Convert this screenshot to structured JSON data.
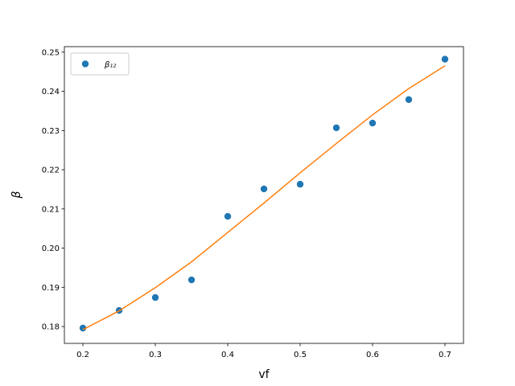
{
  "chart_data": {
    "type": "scatter",
    "xlabel": "vf",
    "ylabel": "β",
    "xlim": [
      0.1744,
      0.7256
    ],
    "ylim": [
      0.1757,
      0.2514
    ],
    "xticks": [
      0.2,
      0.3,
      0.4,
      0.5,
      0.6,
      0.7
    ],
    "yticks": [
      0.18,
      0.19,
      {
        "value": 0.2,
        "label": "0.20"
      },
      0.21,
      0.22,
      0.23,
      0.24,
      0.25
    ],
    "legend": "upper left",
    "series": [
      {
        "name": "β₁₂",
        "mode": "markers",
        "color": "#1f77b4",
        "x": [
          0.2,
          0.25,
          0.3,
          0.35,
          0.4,
          0.45,
          0.5,
          0.55,
          0.6,
          0.65,
          0.7
        ],
        "values": [
          0.1796,
          0.1841,
          0.1874,
          0.1919,
          0.2081,
          0.2151,
          0.2163,
          0.2307,
          0.2319,
          0.2379,
          0.2482
        ]
      },
      {
        "mode": "line",
        "color": "#ff7f0e",
        "x": [
          0.2,
          0.25,
          0.3,
          0.35,
          0.4,
          0.45,
          0.5,
          0.55,
          0.6,
          0.65,
          0.7
        ],
        "values": [
          0.1792,
          0.184,
          0.1899,
          0.1965,
          0.204,
          0.2115,
          0.2192,
          0.2267,
          0.234,
          0.2407,
          0.2465
        ]
      }
    ]
  }
}
